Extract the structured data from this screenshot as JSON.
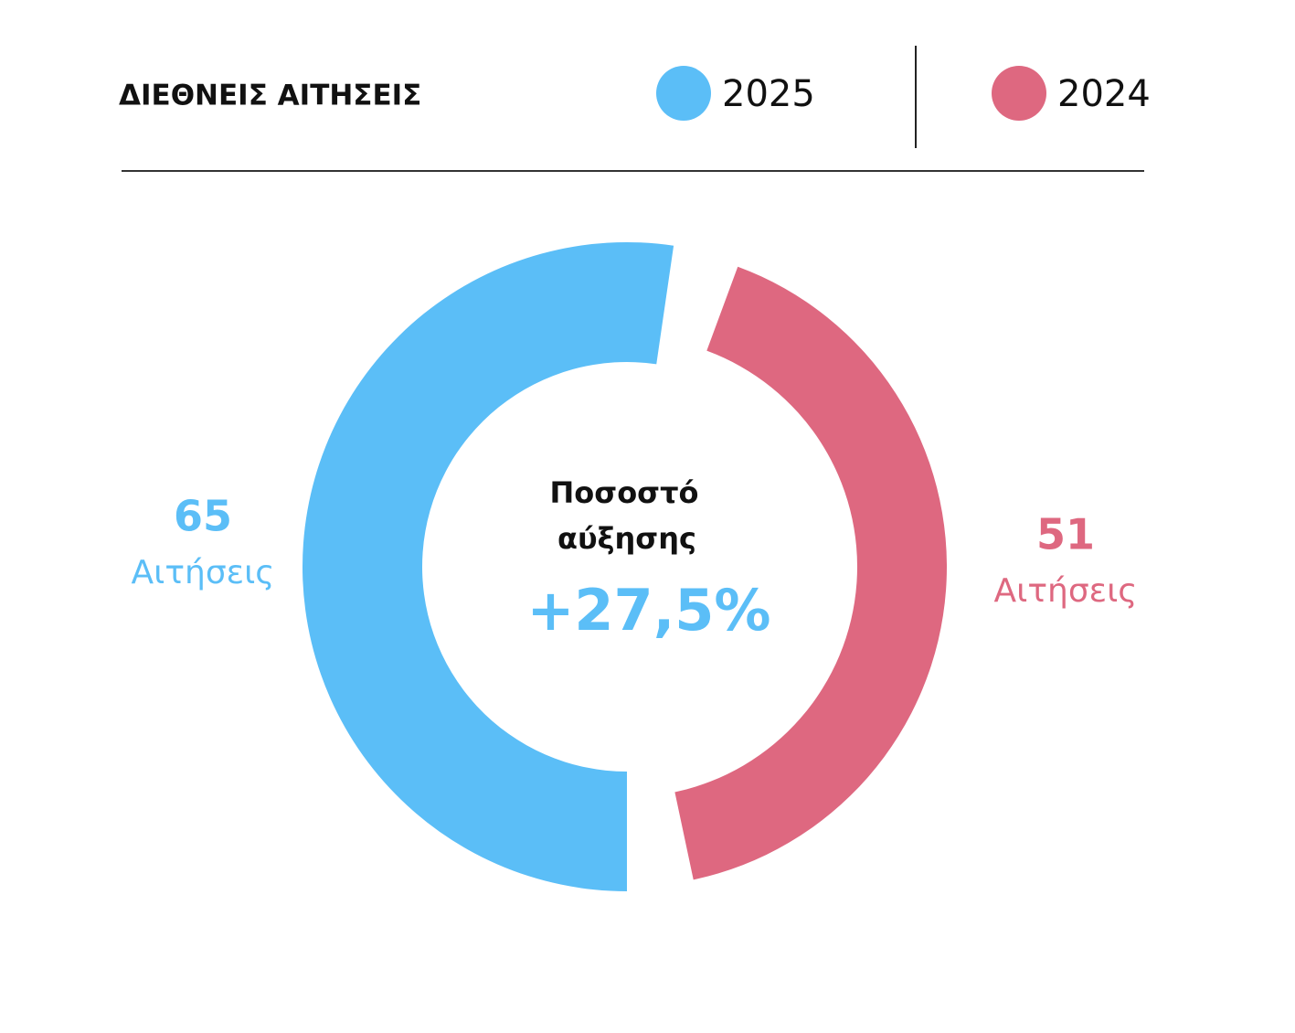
{
  "chart_data": {
    "type": "donut",
    "title": "ΔΙΕΘΝΕΙΣ ΑΙΤΗΣΕΙΣ",
    "series": [
      {
        "name": "2025",
        "color": "#5bbef7",
        "values": [
          65
        ],
        "unit_label": "Αιτήσεις"
      },
      {
        "name": "2024",
        "color": "#de6880",
        "values": [
          51
        ],
        "unit_label": "Αιτήσεις"
      }
    ],
    "center_label": [
      "Ποσοστό",
      "αύξησης"
    ],
    "center_value": "+27,5%"
  }
}
